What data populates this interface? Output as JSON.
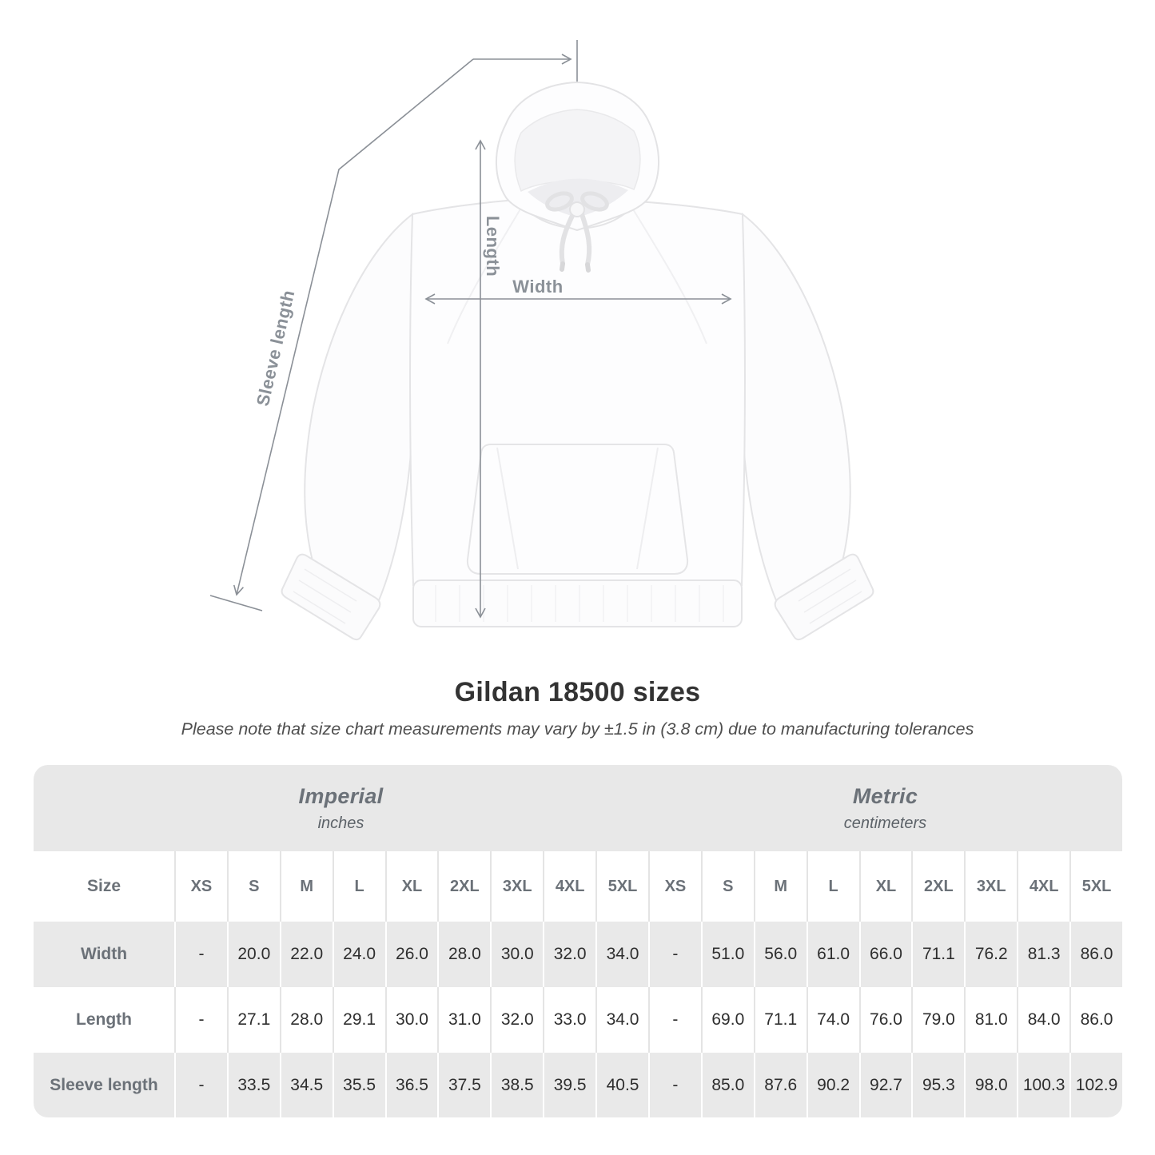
{
  "chart_data": {
    "type": "table",
    "title": "Gildan 18500 sizes",
    "note": "Please note that size chart measurements may vary by ±1.5 in (3.8 cm) due to manufacturing tolerances",
    "corner_header": "Size",
    "column_groups": [
      {
        "label": "Imperial",
        "unit": "inches"
      },
      {
        "label": "Metric",
        "unit": "centimeters"
      }
    ],
    "size_columns": [
      "XS",
      "S",
      "M",
      "L",
      "XL",
      "2XL",
      "3XL",
      "4XL",
      "5XL"
    ],
    "rows": [
      {
        "label": "Width",
        "imperial": [
          "-",
          "20.0",
          "22.0",
          "24.0",
          "26.0",
          "28.0",
          "30.0",
          "32.0",
          "34.0"
        ],
        "metric": [
          "-",
          "51.0",
          "56.0",
          "61.0",
          "66.0",
          "71.1",
          "76.2",
          "81.3",
          "86.0"
        ]
      },
      {
        "label": "Length",
        "imperial": [
          "-",
          "27.1",
          "28.0",
          "29.1",
          "30.0",
          "31.0",
          "32.0",
          "33.0",
          "34.0"
        ],
        "metric": [
          "-",
          "69.0",
          "71.1",
          "74.0",
          "76.0",
          "79.0",
          "81.0",
          "84.0",
          "86.0"
        ]
      },
      {
        "label": "Sleeve length",
        "imperial": [
          "-",
          "33.5",
          "34.5",
          "35.5",
          "36.5",
          "37.5",
          "38.5",
          "39.5",
          "40.5"
        ],
        "metric": [
          "-",
          "85.0",
          "87.6",
          "90.2",
          "92.7",
          "95.3",
          "98.0",
          "100.3",
          "102.9"
        ]
      }
    ]
  },
  "diagram": {
    "labels": {
      "length": "Length",
      "width": "Width",
      "sleeve_length": "Sleeve length"
    }
  },
  "colors": {
    "band_gray": "#e8e8e8",
    "row_stripe_gray": "#e9e9e9",
    "arrow_gray": "#8b9097",
    "muted_text": "#6b7178",
    "title_text": "#333333"
  }
}
